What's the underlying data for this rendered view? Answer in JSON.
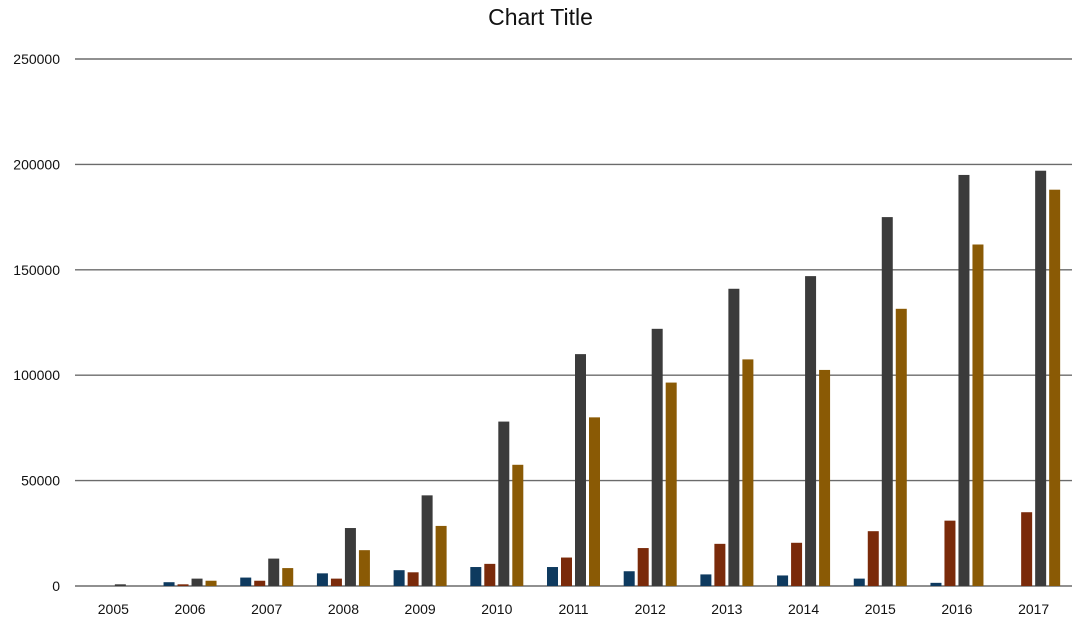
{
  "chart_data": {
    "type": "bar",
    "title": "Chart Title",
    "xlabel": "",
    "ylabel": "",
    "ylim": [
      0,
      250000
    ],
    "yticks": [
      "0",
      "50000",
      "100000",
      "150000",
      "200000",
      "250000"
    ],
    "grid": true,
    "categories": [
      "2005",
      "2006",
      "2007",
      "2008",
      "2009",
      "2010",
      "2011",
      "2012",
      "2013",
      "2014",
      "2015",
      "2016",
      "2017"
    ],
    "series": [
      {
        "color": "#0e3a5f",
        "values": [
          0,
          1800,
          4000,
          6000,
          7500,
          9000,
          9000,
          7000,
          5500,
          5000,
          3500,
          1500,
          0
        ]
      },
      {
        "color": "#7a2a0a",
        "values": [
          0,
          800,
          2500,
          3500,
          6500,
          10500,
          13500,
          18000,
          20000,
          20500,
          26000,
          31000,
          35000
        ]
      },
      {
        "color": "#3b3b3b",
        "values": [
          800,
          3500,
          13000,
          27500,
          43000,
          78000,
          110000,
          122000,
          141000,
          147000,
          175000,
          195000,
          197000
        ]
      },
      {
        "color": "#8a5a05",
        "values": [
          0,
          2500,
          8500,
          17000,
          28500,
          57500,
          80000,
          96500,
          107500,
          102500,
          131500,
          162000,
          188000
        ]
      }
    ]
  }
}
